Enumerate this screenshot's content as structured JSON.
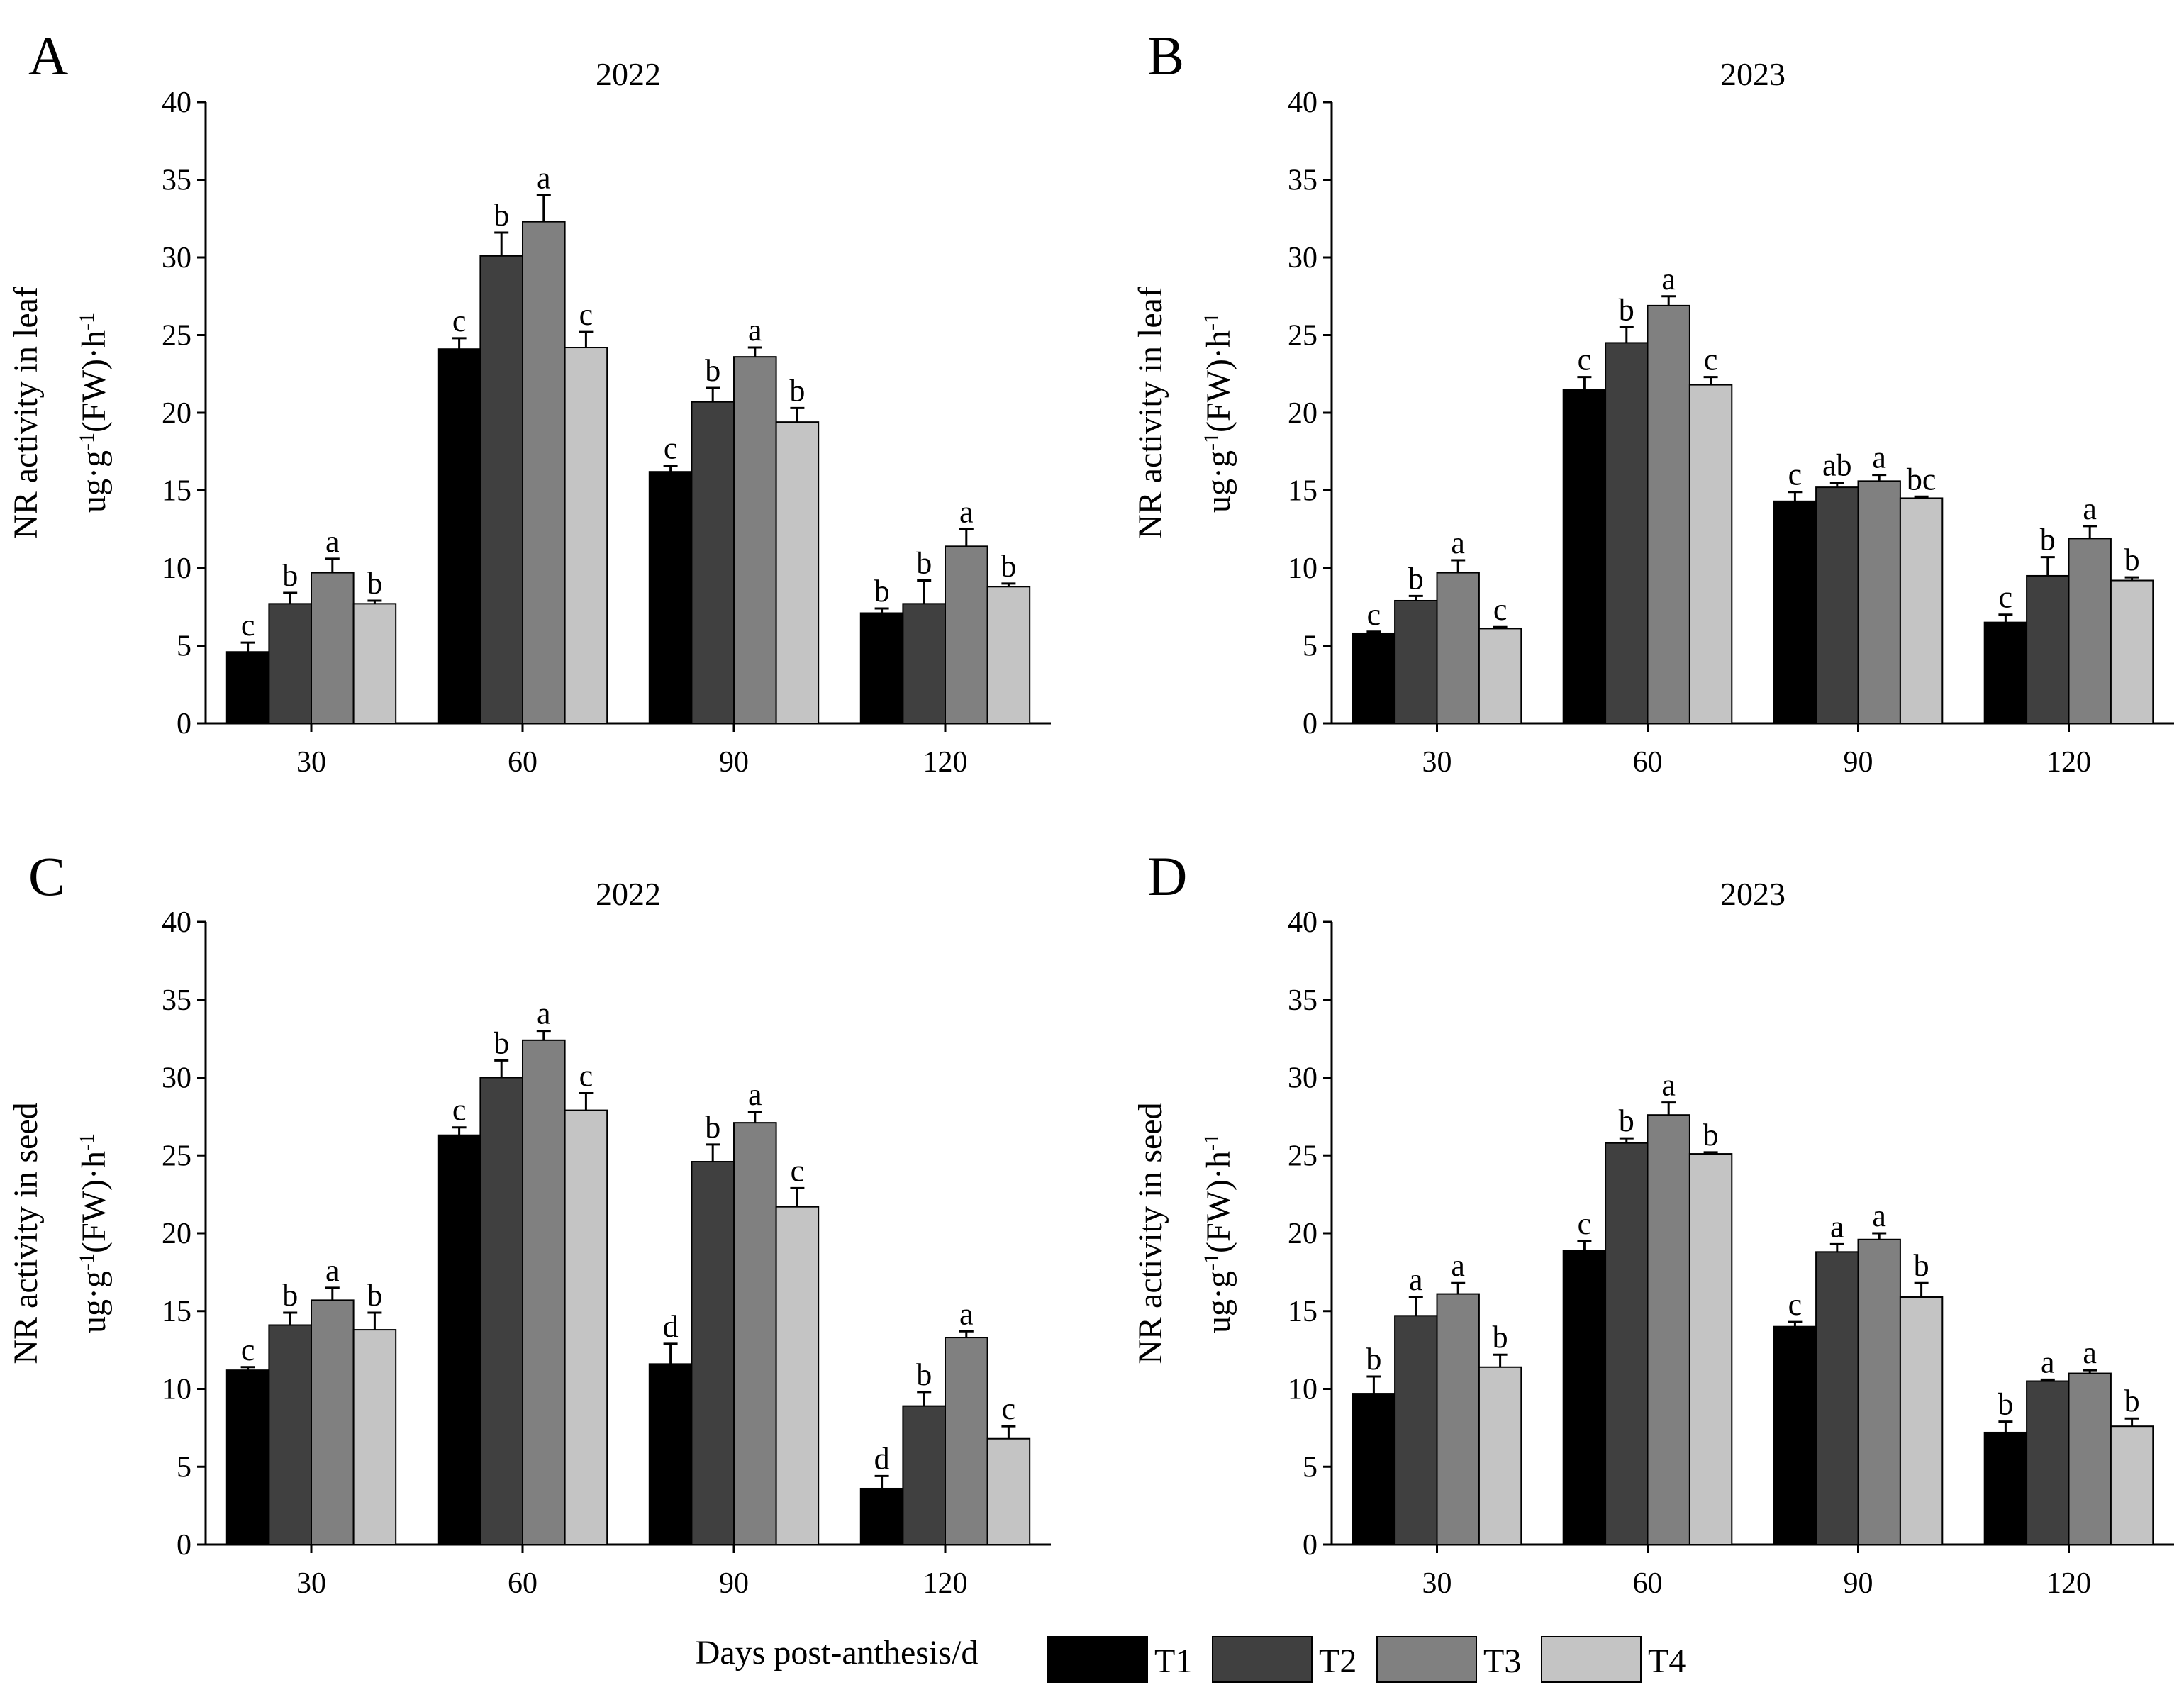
{
  "legend": {
    "xlabel": "Days post-anthesis/d",
    "series": [
      {
        "name": "T1",
        "color": "#000000"
      },
      {
        "name": "T2",
        "color": "#404040"
      },
      {
        "name": "T3",
        "color": "#808080"
      },
      {
        "name": "T4",
        "color": "#c4c4c4"
      }
    ]
  },
  "chart_data": [
    {
      "type": "bar",
      "panel": "A",
      "title": "2022",
      "ylabel_line1": "NR activity in leaf",
      "ylabel_unit": {
        "base": "ug·g",
        "sup1": "-1",
        "mid": "(FW)·h",
        "sup2": "-1"
      },
      "xlabel": "Days post-anthesis/d",
      "categories": [
        "30",
        "60",
        "90",
        "120"
      ],
      "ylim": [
        0,
        40
      ],
      "yticks": [
        0,
        5,
        10,
        15,
        20,
        25,
        30,
        35,
        40
      ],
      "series": [
        {
          "name": "T1",
          "values": [
            4.6,
            24.1,
            16.2,
            7.1
          ],
          "errors": [
            0.6,
            0.7,
            0.4,
            0.3
          ],
          "letters": [
            "c",
            "c",
            "c",
            "b"
          ]
        },
        {
          "name": "T2",
          "values": [
            7.7,
            30.1,
            20.7,
            7.7
          ],
          "errors": [
            0.7,
            1.5,
            0.9,
            1.5
          ],
          "letters": [
            "b",
            "b",
            "b",
            "b"
          ]
        },
        {
          "name": "T3",
          "values": [
            9.7,
            32.3,
            23.6,
            11.4
          ],
          "errors": [
            0.9,
            1.7,
            0.6,
            1.1
          ],
          "letters": [
            "a",
            "a",
            "a",
            "a"
          ]
        },
        {
          "name": "T4",
          "values": [
            7.7,
            24.2,
            19.4,
            8.8
          ],
          "errors": [
            0.2,
            1.0,
            0.9,
            0.2
          ],
          "letters": [
            "b",
            "c",
            "b",
            "b"
          ]
        }
      ]
    },
    {
      "type": "bar",
      "panel": "B",
      "title": "2023",
      "ylabel_line1": "NR activity in leaf",
      "ylabel_unit": {
        "base": "ug·g",
        "sup1": "-1",
        "mid": "(FW)·h",
        "sup2": "-1"
      },
      "xlabel": "Days post-anthesis/d",
      "categories": [
        "30",
        "60",
        "90",
        "120"
      ],
      "ylim": [
        0,
        40
      ],
      "yticks": [
        0,
        5,
        10,
        15,
        20,
        25,
        30,
        35,
        40
      ],
      "series": [
        {
          "name": "T1",
          "values": [
            5.8,
            21.5,
            14.3,
            6.5
          ],
          "errors": [
            0.1,
            0.8,
            0.6,
            0.5
          ],
          "letters": [
            "c",
            "c",
            "c",
            "c"
          ]
        },
        {
          "name": "T2",
          "values": [
            7.9,
            24.5,
            15.2,
            9.5
          ],
          "errors": [
            0.3,
            1.0,
            0.3,
            1.2
          ],
          "letters": [
            "b",
            "b",
            "ab",
            "b"
          ]
        },
        {
          "name": "T3",
          "values": [
            9.7,
            26.9,
            15.6,
            11.9
          ],
          "errors": [
            0.8,
            0.6,
            0.4,
            0.8
          ],
          "letters": [
            "a",
            "a",
            "a",
            "a"
          ]
        },
        {
          "name": "T4",
          "values": [
            6.1,
            21.8,
            14.5,
            9.2
          ],
          "errors": [
            0.1,
            0.5,
            0.1,
            0.2
          ],
          "letters": [
            "c",
            "c",
            "bc",
            "b"
          ]
        }
      ]
    },
    {
      "type": "bar",
      "panel": "C",
      "title": "2022",
      "ylabel_line1": "NR activity in seed",
      "ylabel_unit": {
        "base": "ug·g",
        "sup1": "-1",
        "mid": "(FW)·h",
        "sup2": "-1"
      },
      "xlabel": "Days post-anthesis/d",
      "categories": [
        "30",
        "60",
        "90",
        "120"
      ],
      "ylim": [
        0,
        40
      ],
      "yticks": [
        0,
        5,
        10,
        15,
        20,
        25,
        30,
        35,
        40
      ],
      "series": [
        {
          "name": "T1",
          "values": [
            11.2,
            26.3,
            11.6,
            3.6
          ],
          "errors": [
            0.2,
            0.5,
            1.3,
            0.8
          ],
          "letters": [
            "c",
            "c",
            "d",
            "d"
          ]
        },
        {
          "name": "T2",
          "values": [
            14.1,
            30.0,
            24.6,
            8.9
          ],
          "errors": [
            0.8,
            1.1,
            1.1,
            0.9
          ],
          "letters": [
            "b",
            "b",
            "b",
            "b"
          ]
        },
        {
          "name": "T3",
          "values": [
            15.7,
            32.4,
            27.1,
            13.3
          ],
          "errors": [
            0.8,
            0.6,
            0.7,
            0.4
          ],
          "letters": [
            "a",
            "a",
            "a",
            "a"
          ]
        },
        {
          "name": "T4",
          "values": [
            13.8,
            27.9,
            21.7,
            6.8
          ],
          "errors": [
            1.1,
            1.1,
            1.2,
            0.8
          ],
          "letters": [
            "b",
            "c",
            "c",
            "c"
          ]
        }
      ]
    },
    {
      "type": "bar",
      "panel": "D",
      "title": "2023",
      "ylabel_line1": "NR activity in seed",
      "ylabel_unit": {
        "base": "ug·g",
        "sup1": "-1",
        "mid": "(FW)·h",
        "sup2": "-1"
      },
      "xlabel": "Days post-anthesis/d",
      "categories": [
        "30",
        "60",
        "90",
        "120"
      ],
      "ylim": [
        0,
        40
      ],
      "yticks": [
        0,
        5,
        10,
        15,
        20,
        25,
        30,
        35,
        40
      ],
      "series": [
        {
          "name": "T1",
          "values": [
            9.7,
            18.9,
            14.0,
            7.2
          ],
          "errors": [
            1.1,
            0.6,
            0.3,
            0.7
          ],
          "letters": [
            "b",
            "c",
            "c",
            "b"
          ]
        },
        {
          "name": "T2",
          "values": [
            14.7,
            25.8,
            18.8,
            10.5
          ],
          "errors": [
            1.2,
            0.3,
            0.5,
            0.1
          ],
          "letters": [
            "a",
            "b",
            "a",
            "a"
          ]
        },
        {
          "name": "T3",
          "values": [
            16.1,
            27.6,
            19.6,
            11.0
          ],
          "errors": [
            0.7,
            0.8,
            0.4,
            0.2
          ],
          "letters": [
            "a",
            "a",
            "a",
            "a"
          ]
        },
        {
          "name": "T4",
          "values": [
            11.4,
            25.1,
            15.9,
            7.6
          ],
          "errors": [
            0.8,
            0.1,
            0.9,
            0.5
          ],
          "letters": [
            "b",
            "b",
            "b",
            "b"
          ]
        }
      ]
    }
  ]
}
